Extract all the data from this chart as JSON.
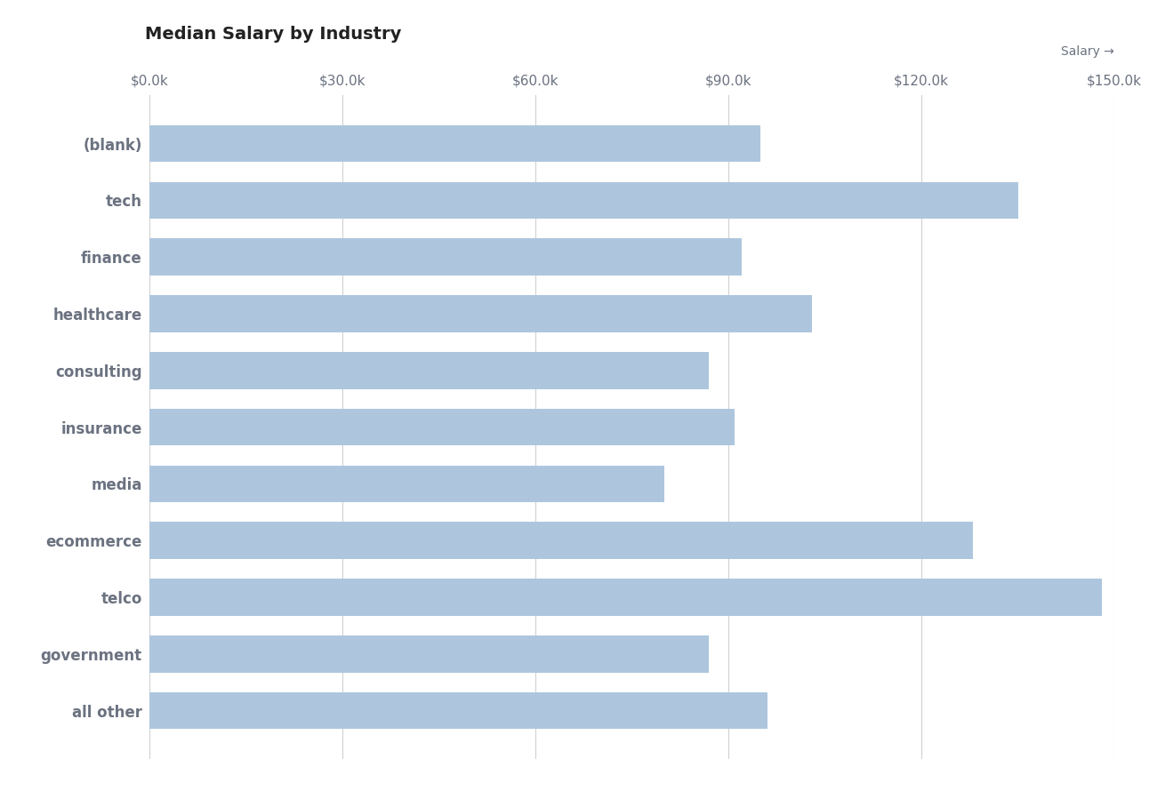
{
  "title": "Median Salary by Industry",
  "salary_label": "Salary →",
  "categories": [
    "(blank)",
    "tech",
    "finance",
    "healthcare",
    "consulting",
    "insurance",
    "media",
    "ecommerce",
    "telco",
    "government",
    "all other"
  ],
  "values": [
    95000,
    135000,
    92000,
    103000,
    87000,
    91000,
    80000,
    128000,
    148000,
    87000,
    96000
  ],
  "bar_color": "#adc6de",
  "background_color": "#ffffff",
  "xlim": [
    0,
    150000
  ],
  "xticks": [
    0,
    30000,
    60000,
    90000,
    120000,
    150000
  ],
  "xtick_labels": [
    "$0.0k",
    "$30.0k",
    "$60.0k",
    "$90.0k",
    "$120.0k",
    "$150.0k"
  ],
  "title_fontsize": 14,
  "label_fontsize": 12,
  "tick_fontsize": 11,
  "salary_label_fontsize": 10,
  "grid_color": "#d0d0d0",
  "text_color": "#6b7280",
  "bar_height": 0.65
}
